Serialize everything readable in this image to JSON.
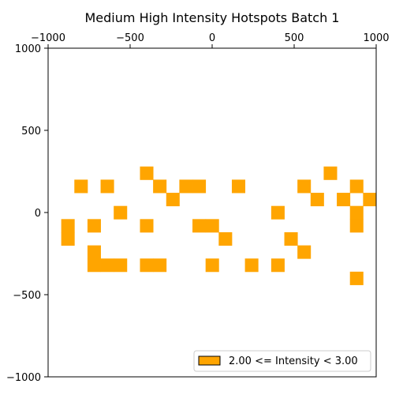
{
  "chart_data": {
    "type": "heatmap",
    "title": "Medium High Intensity Hotspots Batch 1",
    "xlim": [
      -1000,
      1000
    ],
    "ylim": [
      -1000,
      1000
    ],
    "x_ticks": [
      -1000,
      -500,
      0,
      500,
      1000
    ],
    "y_ticks": [
      1000,
      500,
      0,
      -500,
      -1000
    ],
    "x_tick_labels": [
      "−1000",
      "−500",
      "0",
      "500",
      "1000"
    ],
    "y_tick_labels": [
      "1000",
      "500",
      "0",
      "−500",
      "−1000"
    ],
    "x_axis_position": "top",
    "grid": false,
    "cell_size": 80,
    "cell_color": "#ffa500",
    "legend": {
      "label": "2.00 <= Intensity < 3.00",
      "color": "#ffa500",
      "placement": "lower right"
    },
    "cells": [
      [
        -400,
        240
      ],
      [
        720,
        240
      ],
      [
        -800,
        160
      ],
      [
        -640,
        160
      ],
      [
        -320,
        160
      ],
      [
        -160,
        160
      ],
      [
        -80,
        160
      ],
      [
        160,
        160
      ],
      [
        560,
        160
      ],
      [
        880,
        160
      ],
      [
        -240,
        80
      ],
      [
        640,
        80
      ],
      [
        800,
        80
      ],
      [
        960,
        80
      ],
      [
        -560,
        0
      ],
      [
        400,
        0
      ],
      [
        880,
        0
      ],
      [
        -880,
        -80
      ],
      [
        -720,
        -80
      ],
      [
        -400,
        -80
      ],
      [
        -80,
        -80
      ],
      [
        0,
        -80
      ],
      [
        880,
        -80
      ],
      [
        -880,
        -160
      ],
      [
        80,
        -160
      ],
      [
        480,
        -160
      ],
      [
        -720,
        -240
      ],
      [
        560,
        -240
      ],
      [
        -720,
        -320
      ],
      [
        -640,
        -320
      ],
      [
        -560,
        -320
      ],
      [
        -400,
        -320
      ],
      [
        -320,
        -320
      ],
      [
        0,
        -320
      ],
      [
        240,
        -320
      ],
      [
        400,
        -320
      ],
      [
        880,
        -400
      ]
    ]
  }
}
